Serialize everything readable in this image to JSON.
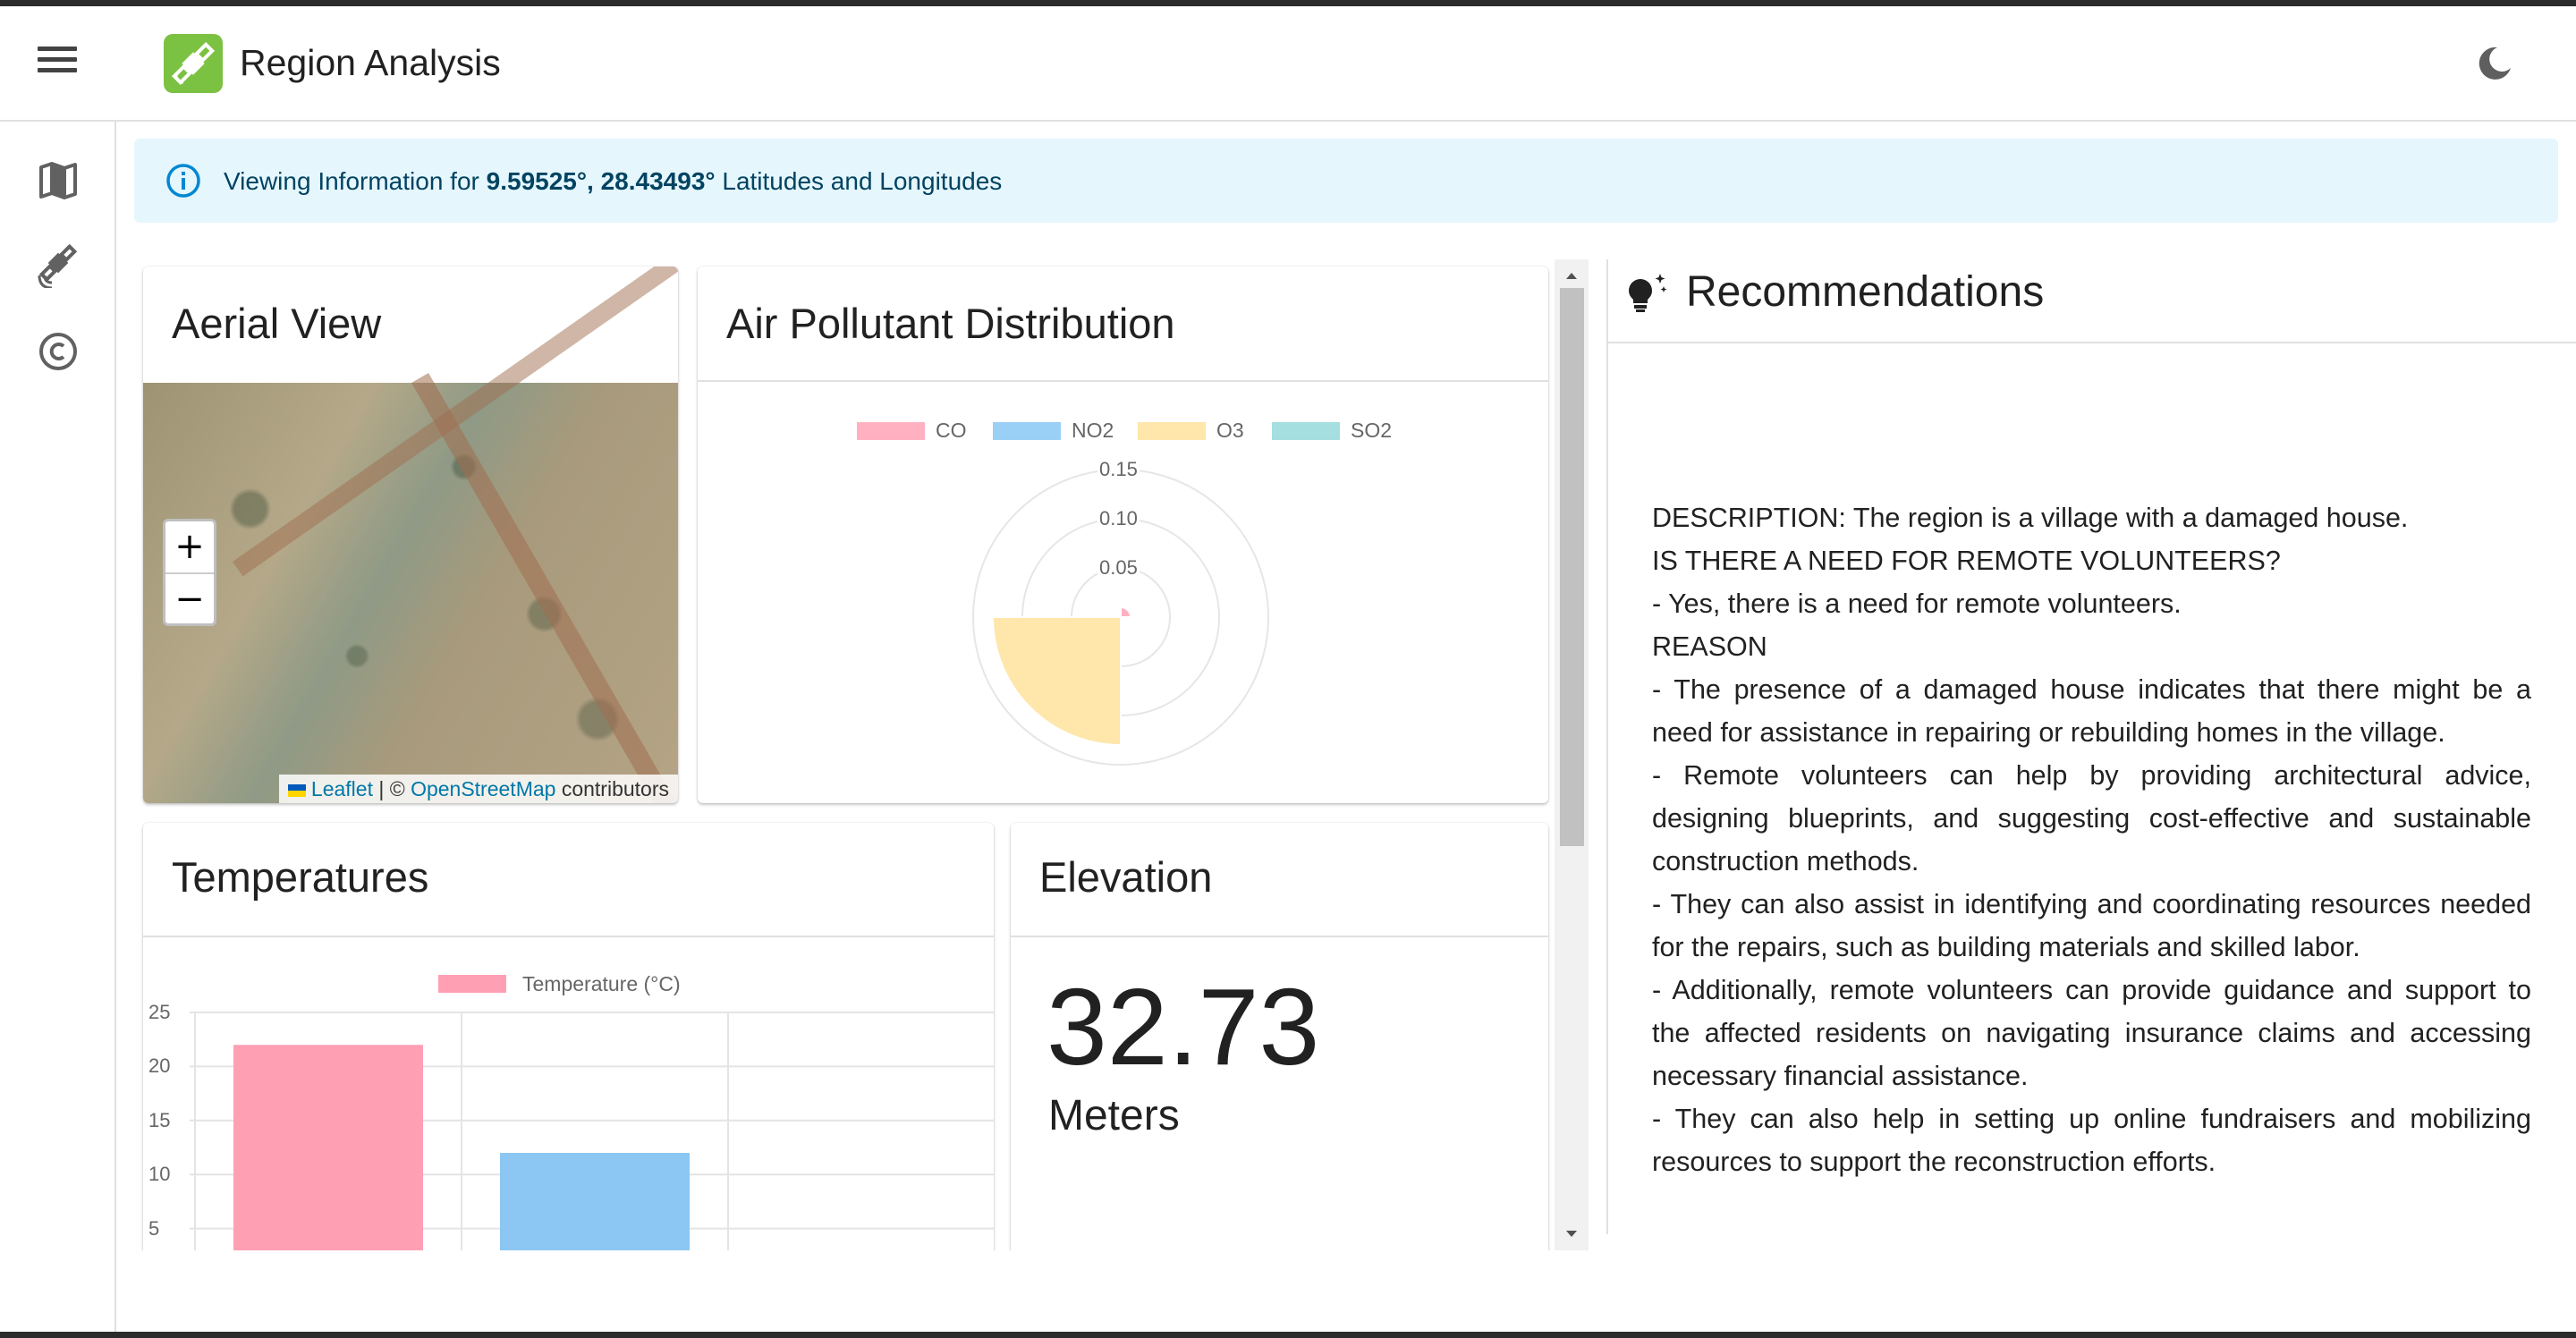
{
  "app": {
    "title": "Region Analysis",
    "accent": "#7cc242",
    "icons": {
      "menu": "menu-icon",
      "logo": "satellite-icon",
      "theme": "moon-icon"
    }
  },
  "sidebar": {
    "items": [
      {
        "icon": "map-icon"
      },
      {
        "icon": "satellite-icon"
      },
      {
        "icon": "copyright-icon"
      }
    ]
  },
  "alert": {
    "icon": "info-icon",
    "prefix": "Viewing Information for ",
    "coords": "9.59525°, 28.43493°",
    "suffix": " Latitudes and Longitudes"
  },
  "aerial": {
    "title": "Aerial View",
    "zoom_in": "+",
    "zoom_out": "−",
    "attribution_leaflet": "Leaflet",
    "attribution_sep": " | © ",
    "attribution_osm": "OpenStreetMap",
    "attribution_suffix": " contributors"
  },
  "pollutant": {
    "title": "Air Pollutant Distribution",
    "chart_data": {
      "type": "polarArea",
      "categories": [
        "CO",
        "NO2",
        "O3",
        "SO2"
      ],
      "values": [
        0.01,
        0,
        0.13,
        0
      ],
      "colors": [
        "#ffb1c1",
        "#9ad0f5",
        "#ffe6aa",
        "#a5dfdf"
      ],
      "rlim": [
        0,
        0.15
      ],
      "ticks": [
        "0.15",
        "0.10",
        "0.05"
      ],
      "legend": "top"
    }
  },
  "temperatures": {
    "title": "Temperatures",
    "chart_data": {
      "type": "bar",
      "legend_label": "Temperature (°C)",
      "values": [
        22,
        12
      ],
      "colors": [
        "#ff9fb4",
        "#8bc7f2"
      ],
      "y_ticks": [
        "25",
        "20",
        "15",
        "10",
        "5"
      ],
      "ylim": [
        0,
        25
      ],
      "grid": true
    }
  },
  "elevation": {
    "title": "Elevation",
    "value": "32.73",
    "unit": "Meters"
  },
  "recommendations": {
    "title": "Recommendations",
    "icon": "lightbulb-icon",
    "lines": [
      "DESCRIPTION: The region is a village with a damaged house.",
      "IS THERE A NEED FOR REMOTE VOLUNTEERS?",
      "- Yes, there is a need for remote volunteers.",
      "REASON",
      "- The presence of a damaged house indicates that there might be a need for assistance in repairing or rebuilding homes in the village.",
      "- Remote volunteers can help by providing architectural advice, designing blueprints, and suggesting cost-effective and sustainable construction methods.",
      "- They can also assist in identifying and coordinating resources needed for the repairs, such as building materials and skilled labor.",
      "- Additionally, remote volunteers can provide guidance and support to the affected residents on navigating insurance claims and accessing necessary financial assistance.",
      "- They can also help in setting up online fundraisers and mobilizing resources to support the reconstruction efforts."
    ]
  }
}
